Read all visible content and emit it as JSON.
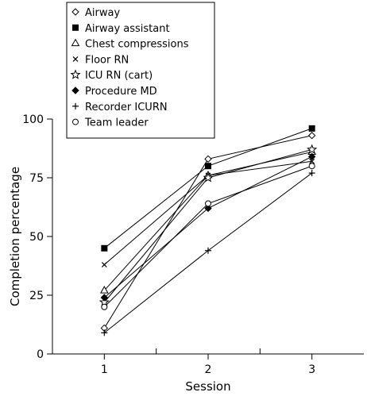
{
  "chart_data": {
    "type": "line",
    "xlabel": "Session",
    "ylabel": "Completion percentage",
    "x": [
      1,
      2,
      3
    ],
    "xlim": [
      0.5,
      3.5
    ],
    "ylim": [
      0,
      100
    ],
    "yticks": [
      0,
      25,
      50,
      75,
      100
    ],
    "grid": false,
    "legend_position": "top-left",
    "series": [
      {
        "name": "Airway",
        "marker": "diamond-open",
        "values": [
          11,
          83,
          93
        ]
      },
      {
        "name": "Airway assistant",
        "marker": "square-filled",
        "values": [
          45,
          80,
          96
        ]
      },
      {
        "name": "Chest compressions",
        "marker": "triangle-open",
        "values": [
          27,
          76,
          86
        ]
      },
      {
        "name": "Floor RN",
        "marker": "x",
        "values": [
          38,
          76,
          82
        ]
      },
      {
        "name": "ICU RN (cart)",
        "marker": "star-open",
        "values": [
          22,
          75,
          87
        ]
      },
      {
        "name": "Procedure MD",
        "marker": "diamond-filled",
        "values": [
          24,
          62,
          84
        ]
      },
      {
        "name": "Recorder ICURN",
        "marker": "plus",
        "values": [
          9,
          44,
          77
        ]
      },
      {
        "name": "Team leader",
        "marker": "circle-open",
        "values": [
          20,
          64,
          80
        ]
      }
    ]
  }
}
